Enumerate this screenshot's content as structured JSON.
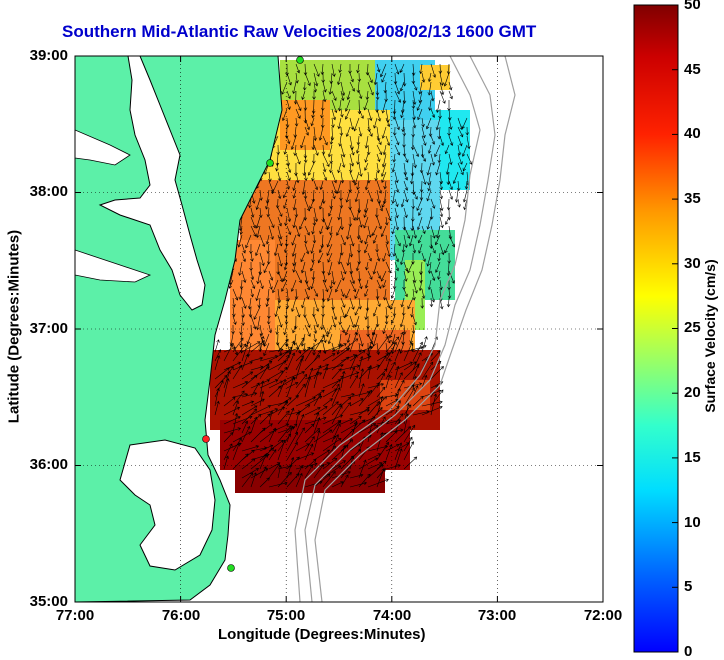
{
  "chart_data": {
    "type": "map",
    "title": "Southern Mid-Atlantic Raw Velocities 2008/02/13 1600 GMT",
    "xlabel": "Longitude (Degrees:Minutes)",
    "ylabel": "Latitude (Degrees:Minutes)",
    "x_ticks": [
      "77:00",
      "76:00",
      "75:00",
      "74:00",
      "73:00",
      "72:00"
    ],
    "y_ticks": [
      "39:00",
      "38:00",
      "37:00",
      "36:00",
      "35:00"
    ],
    "xlim": [
      -77,
      -72
    ],
    "ylim": [
      35,
      39
    ],
    "grid": true,
    "colorbar": {
      "label": "Surface Velocity (cm/s)",
      "ticks": [
        "50",
        "45",
        "40",
        "35",
        "30",
        "25",
        "20",
        "15",
        "10",
        "5",
        "0"
      ],
      "range": [
        0,
        50
      ]
    },
    "colors": {
      "land": "#5cf0a8",
      "coastline": "#000000",
      "bathymetry": "#a0a0a0",
      "title": "#0000cc"
    }
  }
}
